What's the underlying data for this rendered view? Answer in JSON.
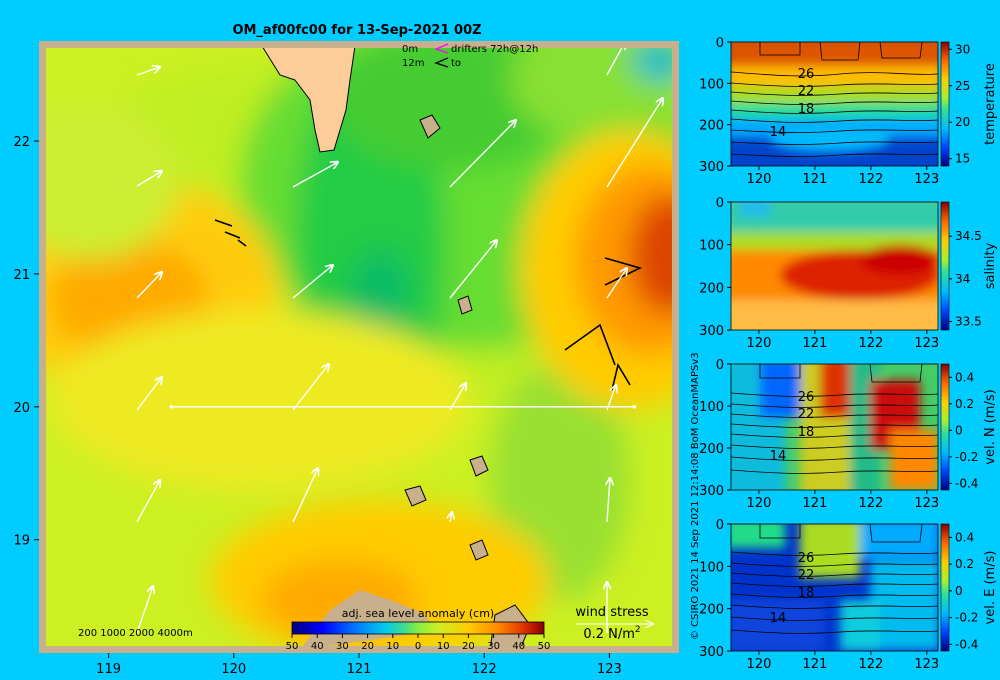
{
  "chart_data": [
    {
      "type": "heatmap",
      "title": "OM_af00fc00 for 13-Sep-2021 00Z",
      "xlim": [
        118.5,
        123.5
      ],
      "ylim": [
        18.2,
        22.7
      ],
      "x_ticks": [
        "119",
        "120",
        "121",
        "122",
        "123"
      ],
      "y_ticks": [
        "19",
        "20",
        "21",
        "22"
      ],
      "colorbar": {
        "label": "adj. sea level anomaly (cm)",
        "range": [
          -50,
          50
        ],
        "ticks": [
          "50",
          "40",
          "30",
          "20",
          "10",
          "0",
          "10",
          "20",
          "30",
          "40",
          "50"
        ]
      },
      "legend": {
        "drifter_0m": "0m",
        "drifter_12m": "12m",
        "drifter_text_1": "drifters 72h@12h",
        "drifter_text_2": "to"
      },
      "depth_legend": "200 1000 2000 4000m",
      "wind_legend": {
        "title": "wind stress",
        "scale": "0.2 N/m",
        "sup": "2"
      },
      "transect": {
        "lat": 20,
        "lon_start": 119.5,
        "lon_end": 123.2
      },
      "credit": "© CSIRO 2021   14 Sep 2021 12:14:08 BoM OceanMAPSv3"
    },
    {
      "type": "heatmap",
      "ylabel": "temperature",
      "x_ticks": [
        "120",
        "121",
        "122",
        "123"
      ],
      "y_ticks": [
        "0",
        "100",
        "200",
        "300"
      ],
      "colorbar_ticks": [
        "30",
        "25",
        "20",
        "15"
      ],
      "colorbar_range": [
        14,
        31
      ],
      "contour_labels": [
        "26",
        "22",
        "18",
        "14"
      ]
    },
    {
      "type": "heatmap",
      "ylabel": "salinity",
      "x_ticks": [
        "120",
        "121",
        "122",
        "123"
      ],
      "y_ticks": [
        "0",
        "100",
        "200",
        "300"
      ],
      "colorbar_ticks": [
        "34.5",
        "34",
        "33.5"
      ],
      "colorbar_range": [
        33.4,
        34.9
      ]
    },
    {
      "type": "heatmap",
      "ylabel": "vel. N (m/s)",
      "x_ticks": [
        "120",
        "121",
        "122",
        "123"
      ],
      "y_ticks": [
        "0",
        "100",
        "200",
        "300"
      ],
      "colorbar_ticks": [
        "0.4",
        "0.2",
        "0",
        "-0.2",
        "-0.4"
      ],
      "colorbar_range": [
        -0.45,
        0.5
      ],
      "contour_labels": [
        "26",
        "22",
        "18",
        "14"
      ]
    },
    {
      "type": "heatmap",
      "ylabel": "vel. E (m/s)",
      "x_ticks": [
        "120",
        "121",
        "122",
        "123"
      ],
      "y_ticks": [
        "0",
        "100",
        "200",
        "300"
      ],
      "colorbar_ticks": [
        "0.4",
        "0.2",
        "0",
        "-0.2",
        "-0.4"
      ],
      "colorbar_range": [
        -0.45,
        0.5
      ],
      "contour_labels": [
        "26",
        "22",
        "18",
        "14"
      ]
    }
  ]
}
